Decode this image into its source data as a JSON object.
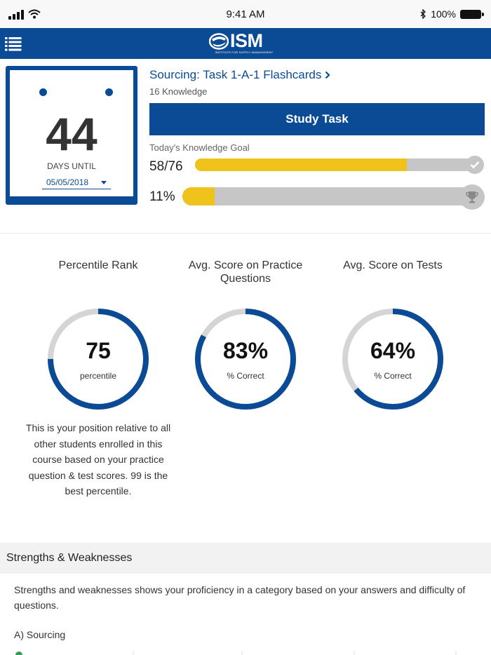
{
  "status_bar": {
    "time": "9:41 AM",
    "battery": "100%"
  },
  "nav": {
    "logo_text": "ISM",
    "logo_sub": "INSTITUTE FOR SUPPLY MANAGEMENT"
  },
  "countdown": {
    "days": "44",
    "label": "DAYS UNTIL",
    "date": "05/05/2018"
  },
  "task": {
    "title": "Sourcing: Task 1-A-1 Flashcards",
    "subtitle": "16 Knowledge",
    "button_label": "Study Task"
  },
  "goal": {
    "label": "Today's Knowledge Goal",
    "progress_text": "58/76",
    "progress_fraction": 0.763,
    "percent_text": "11%",
    "percent_fraction": 0.11
  },
  "colors": {
    "brand": "#0b4b96",
    "progress": "#f0c21c",
    "track": "#c6c6c6"
  },
  "stats": [
    {
      "title": "Percentile Rank",
      "value": "75",
      "unit": "percentile",
      "fraction": 0.75
    },
    {
      "title": "Avg. Score on Practice Questions",
      "value": "83%",
      "unit": "% Correct",
      "fraction": 0.83
    },
    {
      "title": "Avg. Score on Tests",
      "value": "64%",
      "unit": "% Correct",
      "fraction": 0.64
    }
  ],
  "percentile_description": "This is your position relative to all other students enrolled in this course based on your practice question & test scores. 99 is the best percentile.",
  "strengths": {
    "header": "Strengths & Weaknesses",
    "description": "Strengths and weaknesses shows your proficiency in a category based on your answers and difficulty of questions.",
    "category": "A) Sourcing"
  }
}
